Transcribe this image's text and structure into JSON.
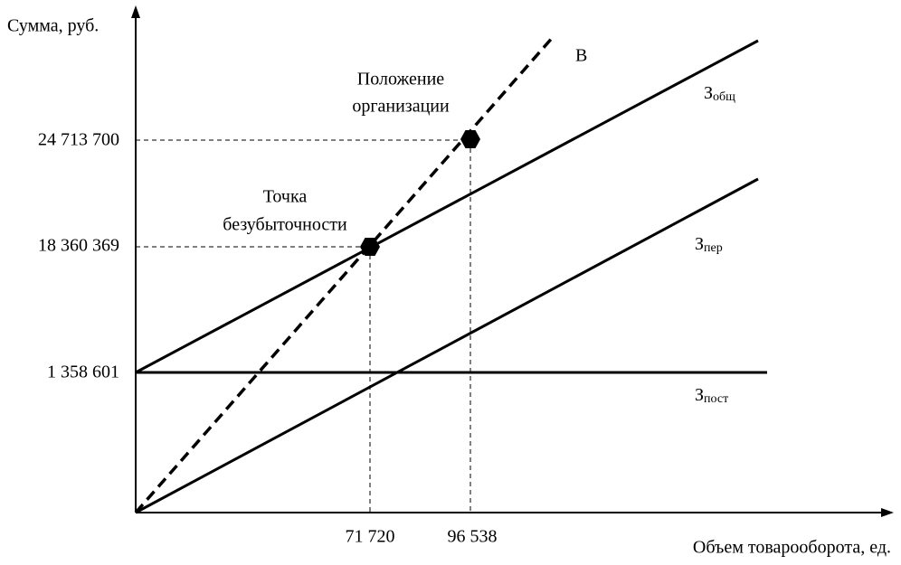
{
  "y_axis": {
    "label": "Сумма, руб.",
    "ticks": [
      "24 713 700",
      "18 360 369",
      "1 358 601"
    ]
  },
  "x_axis": {
    "label": "Объем товарооборота, ед.",
    "ticks": [
      "71 720",
      "96 538"
    ]
  },
  "lines": [
    {
      "main": "З",
      "sub": "общ"
    },
    {
      "main": "З",
      "sub": "пер"
    },
    {
      "main": "З",
      "sub": "пост"
    },
    {
      "main": "В"
    }
  ],
  "annotations": {
    "position": [
      "Положение",
      "организации"
    ],
    "breakeven": [
      "Точка",
      "безубыточности"
    ]
  }
}
